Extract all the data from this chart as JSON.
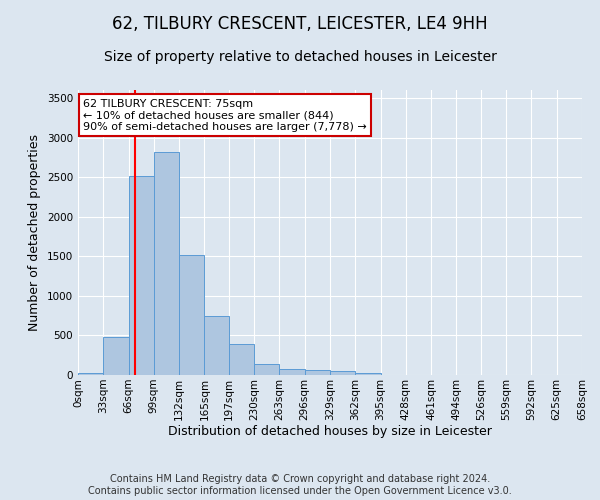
{
  "title_line1": "62, TILBURY CRESCENT, LEICESTER, LE4 9HH",
  "title_line2": "Size of property relative to detached houses in Leicester",
  "xlabel": "Distribution of detached houses by size in Leicester",
  "ylabel": "Number of detached properties",
  "bin_labels": [
    "0sqm",
    "33sqm",
    "66sqm",
    "99sqm",
    "132sqm",
    "165sqm",
    "197sqm",
    "230sqm",
    "263sqm",
    "296sqm",
    "329sqm",
    "362sqm",
    "395sqm",
    "428sqm",
    "461sqm",
    "494sqm",
    "526sqm",
    "559sqm",
    "592sqm",
    "625sqm",
    "658sqm"
  ],
  "bin_edges": [
    0,
    33,
    66,
    99,
    132,
    165,
    197,
    230,
    263,
    296,
    329,
    362,
    395,
    428,
    461,
    494,
    526,
    559,
    592,
    625,
    658
  ],
  "bar_values": [
    30,
    480,
    2510,
    2820,
    1520,
    750,
    390,
    145,
    75,
    60,
    55,
    30,
    5,
    0,
    0,
    0,
    0,
    0,
    0,
    0
  ],
  "bar_color": "#aec6e0",
  "bar_edge_color": "#5b9bd5",
  "bar_edge_width": 0.7,
  "red_line_x": 75,
  "annotation_line1": "62 TILBURY CRESCENT: 75sqm",
  "annotation_line2": "← 10% of detached houses are smaller (844)",
  "annotation_line3": "90% of semi-detached houses are larger (7,778) →",
  "annotation_box_color": "#ffffff",
  "annotation_box_edge": "#cc0000",
  "ylim": [
    0,
    3600
  ],
  "yticks": [
    0,
    500,
    1000,
    1500,
    2000,
    2500,
    3000,
    3500
  ],
  "background_color": "#dce6f0",
  "grid_color": "#ffffff",
  "footer_line1": "Contains HM Land Registry data © Crown copyright and database right 2024.",
  "footer_line2": "Contains public sector information licensed under the Open Government Licence v3.0.",
  "title_fontsize": 12,
  "subtitle_fontsize": 10,
  "axis_label_fontsize": 9,
  "tick_fontsize": 7.5,
  "annotation_fontsize": 8,
  "footer_fontsize": 7
}
